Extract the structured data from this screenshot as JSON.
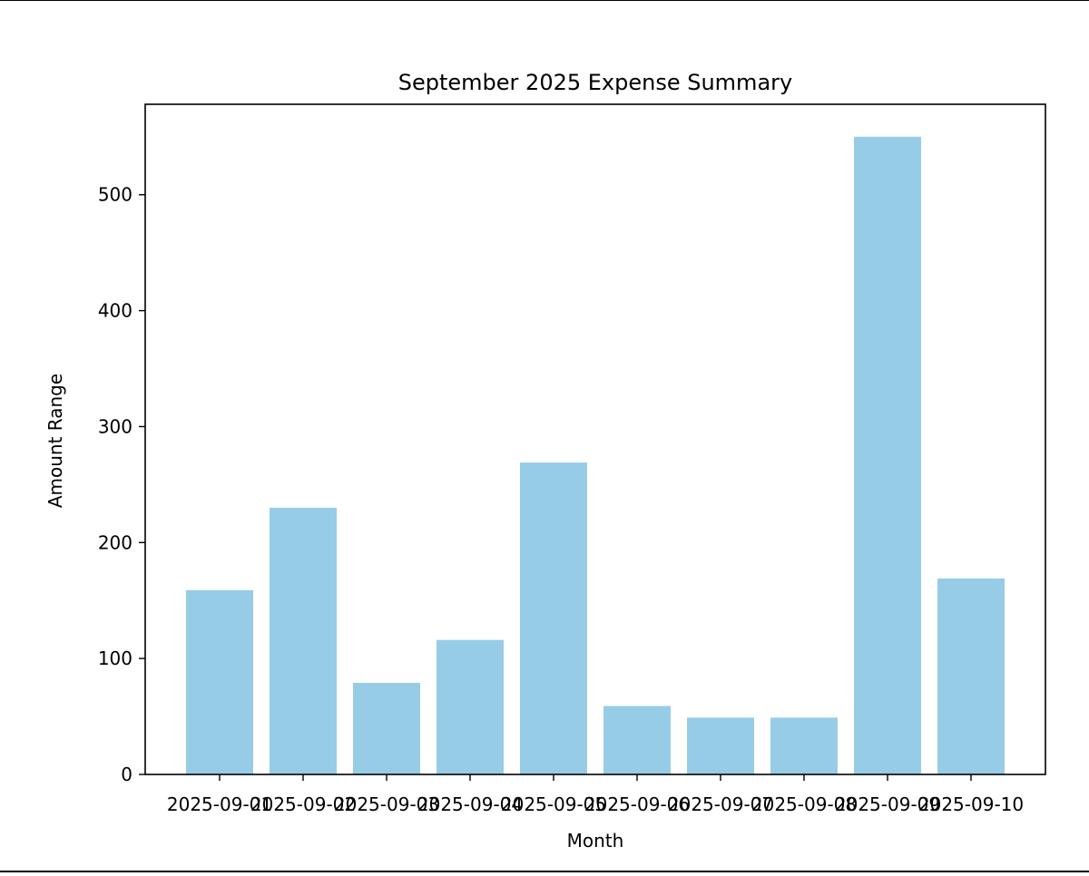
{
  "chart_data": {
    "type": "bar",
    "title": "September 2025 Expense Summary",
    "xlabel": "Month",
    "ylabel": "Amount Range",
    "categories": [
      "2025-09-01",
      "2025-09-02",
      "2025-09-03",
      "2025-09-04",
      "2025-09-05",
      "2025-09-06",
      "2025-09-07",
      "2025-09-08",
      "2025-09-09",
      "2025-09-10"
    ],
    "values": [
      159,
      230,
      79,
      116,
      269,
      59,
      49,
      49,
      550,
      169
    ],
    "ylim": [
      0,
      578
    ],
    "yticks": [
      0,
      100,
      200,
      300,
      400,
      500
    ],
    "bar_color": "#97cce7",
    "grid": false,
    "legend": "none"
  }
}
